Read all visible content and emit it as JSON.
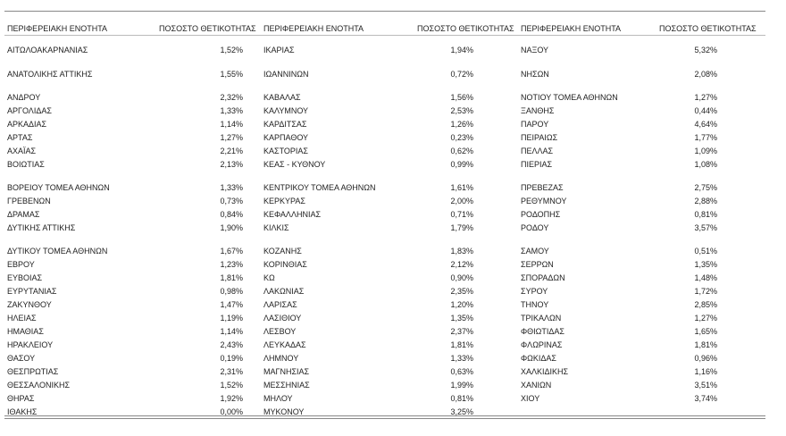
{
  "table": {
    "groups": [
      {
        "header": [
          "ΠΕΡΙΦΕΡΕΙΑΚΗ ΕΝΟΤΗΤΑ",
          "ΠΟΣΟΣΤΟ ΘΕΤΙΚΟΤΗΤΑΣ"
        ],
        "rows": [
          [
            "ΑΙΤΩΛΟΑΚΑΡΝΑΝΙΑΣ",
            "1,52%"
          ],
          [
            "ΑΝΑΤΟΛΙΚΗΣ ΑΤΤΙΚΗΣ",
            "1,55%"
          ],
          [
            "ΑΝΔΡΟΥ",
            "2,32%"
          ],
          [
            "ΑΡΓΟΛΙΔΑΣ",
            "1,33%"
          ],
          [
            "ΑΡΚΑΔΙΑΣ",
            "1,14%"
          ],
          [
            "ΑΡΤΑΣ",
            "1,27%"
          ],
          [
            "ΑΧΑΪΑΣ",
            "2,21%"
          ],
          [
            "ΒΟΙΩΤΙΑΣ",
            "2,13%"
          ],
          [
            "ΒΟΡΕΙΟΥ ΤΟΜΕΑ ΑΘΗΝΩΝ",
            "1,33%"
          ],
          [
            "ΓΡΕΒΕΝΩΝ",
            "0,73%"
          ],
          [
            "ΔΡΑΜΑΣ",
            "0,84%"
          ],
          [
            "ΔΥΤΙΚΗΣ ΑΤΤΙΚΗΣ",
            "1,90%"
          ],
          [
            "ΔΥΤΙΚΟΥ ΤΟΜΕΑ ΑΘΗΝΩΝ",
            "1,67%"
          ],
          [
            "ΕΒΡΟΥ",
            "1,23%"
          ],
          [
            "ΕΥΒΟΙΑΣ",
            "1,81%"
          ],
          [
            "ΕΥΡΥΤΑΝΙΑΣ",
            "0,98%"
          ],
          [
            "ΖΑΚΥΝΘΟΥ",
            "1,47%"
          ],
          [
            "ΗΛΕΙΑΣ",
            "1,19%"
          ],
          [
            "ΗΜΑΘΙΑΣ",
            "1,14%"
          ],
          [
            "ΗΡΑΚΛΕΙΟΥ",
            "2,43%"
          ],
          [
            "ΘΑΣΟΥ",
            "0,19%"
          ],
          [
            "ΘΕΣΠΡΩΤΙΑΣ",
            "2,31%"
          ],
          [
            "ΘΕΣΣΑΛΟΝΙΚΗΣ",
            "1,52%"
          ],
          [
            "ΘΗΡΑΣ",
            "1,92%"
          ],
          [
            "ΙΘΑΚΗΣ",
            "0,00%"
          ]
        ]
      },
      {
        "header": [
          "ΠΕΡΙΦΕΡΕΙΑΚΗ ΕΝΟΤΗΤΑ",
          "ΠΟΣΟΣΤΟ ΘΕΤΙΚΟΤΗΤΑΣ"
        ],
        "rows": [
          [
            "ΙΚΑΡΙΑΣ",
            "1,94%"
          ],
          [
            "ΙΩΑΝΝΙΝΩΝ",
            "0,72%"
          ],
          [
            "ΚΑΒΑΛΑΣ",
            "1,56%"
          ],
          [
            "ΚΑΛΥΜΝΟΥ",
            "2,53%"
          ],
          [
            "ΚΑΡΔΙΤΣΑΣ",
            "1,26%"
          ],
          [
            "ΚΑΡΠΑΘΟΥ",
            "0,23%"
          ],
          [
            "ΚΑΣΤΟΡΙΑΣ",
            "0,62%"
          ],
          [
            "ΚΕΑΣ - ΚΥΘΝΟΥ",
            "0,99%"
          ],
          [
            "ΚΕΝΤΡΙΚΟΥ ΤΟΜΕΑ ΑΘΗΝΩΝ",
            "1,61%"
          ],
          [
            "ΚΕΡΚΥΡΑΣ",
            "2,00%"
          ],
          [
            "ΚΕΦΑΛΛΗΝΙΑΣ",
            "0,71%"
          ],
          [
            "ΚΙΛΚΙΣ",
            "1,79%"
          ],
          [
            "ΚΟΖΑΝΗΣ",
            "1,83%"
          ],
          [
            "ΚΟΡΙΝΘΙΑΣ",
            "2,12%"
          ],
          [
            "ΚΩ",
            "0,90%"
          ],
          [
            "ΛΑΚΩΝΙΑΣ",
            "2,35%"
          ],
          [
            "ΛΑΡΙΣΑΣ",
            "1,20%"
          ],
          [
            "ΛΑΣΙΘΙΟΥ",
            "1,35%"
          ],
          [
            "ΛΕΣΒΟΥ",
            "2,37%"
          ],
          [
            "ΛΕΥΚΑΔΑΣ",
            "1,81%"
          ],
          [
            "ΛΗΜΝΟΥ",
            "1,33%"
          ],
          [
            "ΜΑΓΝΗΣΙΑΣ",
            "0,63%"
          ],
          [
            "ΜΕΣΣΗΝΙΑΣ",
            "1,99%"
          ],
          [
            "ΜΗΛΟΥ",
            "0,81%"
          ],
          [
            "ΜΥΚΟΝΟΥ",
            "3,25%"
          ]
        ]
      },
      {
        "header": [
          "ΠΕΡΙΦΕΡΕΙΑΚΗ ΕΝΟΤΗΤΑ",
          "ΠΟΣΟΣΤΟ ΘΕΤΙΚΟΤΗΤΑΣ"
        ],
        "rows": [
          [
            "ΝΑΞΟΥ",
            "5,32%"
          ],
          [
            "ΝΗΣΩΝ",
            "2,08%"
          ],
          [
            "ΝΟΤΙΟΥ ΤΟΜΕΑ ΑΘΗΝΩΝ",
            "1,27%"
          ],
          [
            "ΞΑΝΘΗΣ",
            "0,44%"
          ],
          [
            "ΠΑΡΟΥ",
            "4,64%"
          ],
          [
            "ΠΕΙΡΑΙΩΣ",
            "1,77%"
          ],
          [
            "ΠΕΛΛΑΣ",
            "1,09%"
          ],
          [
            "ΠΙΕΡΙΑΣ",
            "1,08%"
          ],
          [
            "ΠΡΕΒΕΖΑΣ",
            "2,75%"
          ],
          [
            "ΡΕΘΥΜΝΟΥ",
            "2,88%"
          ],
          [
            "ΡΟΔΟΠΗΣ",
            "0,81%"
          ],
          [
            "ΡΟΔΟΥ",
            "3,57%"
          ],
          [
            "ΣΑΜΟΥ",
            "0,51%"
          ],
          [
            "ΣΕΡΡΩΝ",
            "1,35%"
          ],
          [
            "ΣΠΟΡΑΔΩΝ",
            "1,48%"
          ],
          [
            "ΣΥΡΟΥ",
            "1,72%"
          ],
          [
            "ΤΗΝΟΥ",
            "2,85%"
          ],
          [
            "ΤΡΙΚΑΛΩΝ",
            "1,27%"
          ],
          [
            "ΦΘΙΩΤΙΔΑΣ",
            "1,65%"
          ],
          [
            "ΦΛΩΡΙΝΑΣ",
            "1,81%"
          ],
          [
            "ΦΩΚΙΔΑΣ",
            "0,96%"
          ],
          [
            "ΧΑΛΚΙΔΙΚΗΣ",
            "1,16%"
          ],
          [
            "ΧΑΝΙΩΝ",
            "3,51%"
          ],
          [
            "ΧΙΟΥ",
            "3,74%"
          ]
        ]
      }
    ]
  }
}
